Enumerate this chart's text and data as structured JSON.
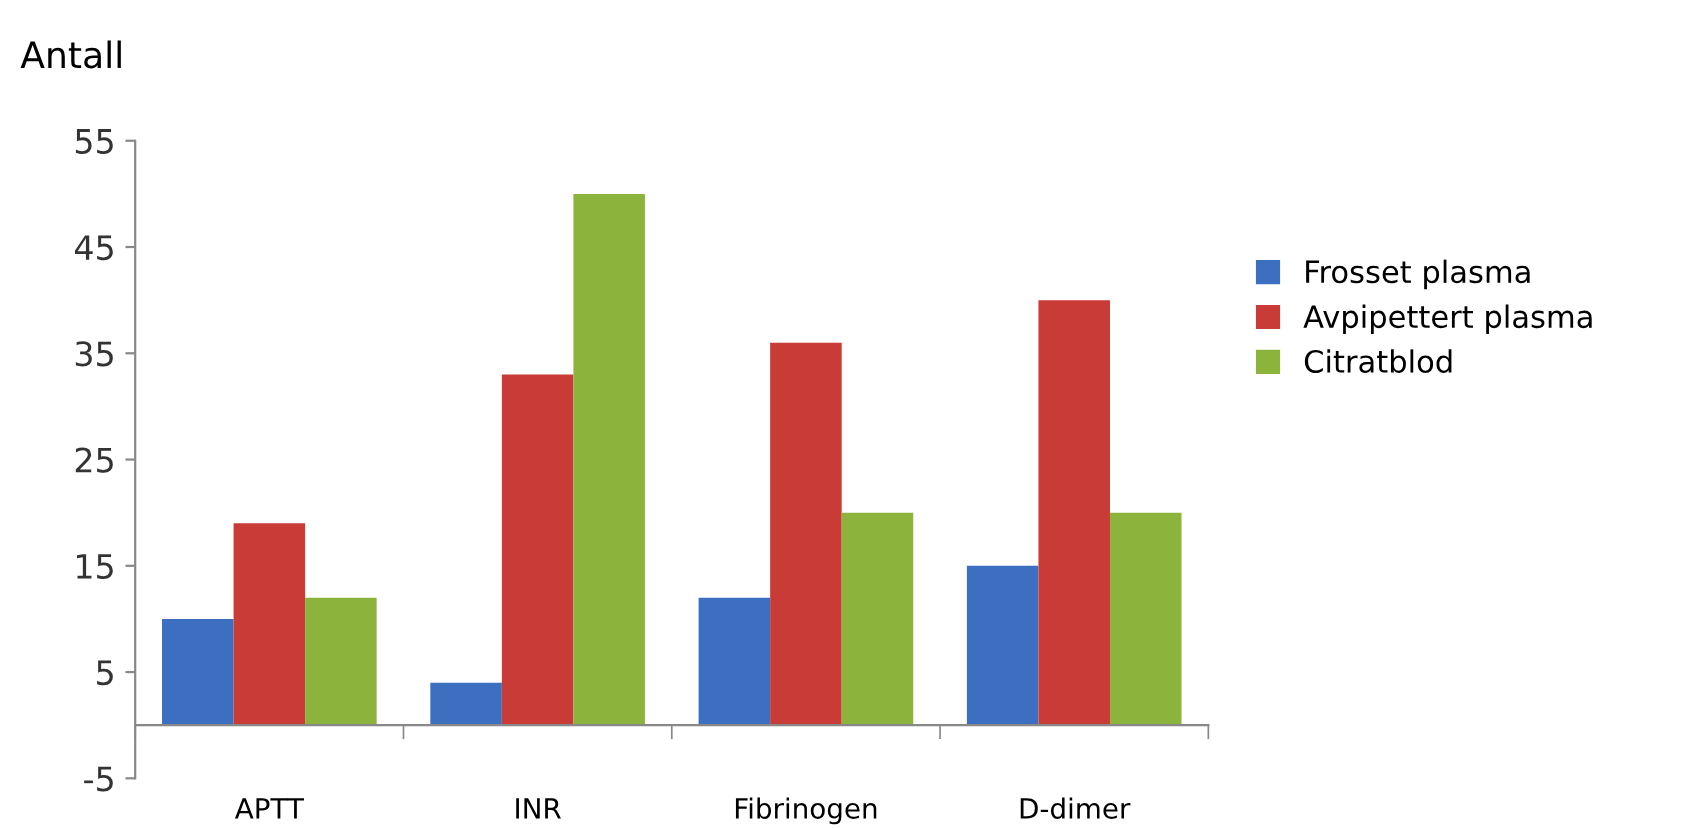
{
  "chart_data": {
    "type": "bar",
    "ylabel": "Antall",
    "categories": [
      "APTT",
      "INR",
      "Fibrinogen",
      "D-dimer"
    ],
    "series": [
      {
        "name": "Frosset plasma",
        "color": "#3c6fc0",
        "values": [
          10,
          4,
          12,
          15
        ]
      },
      {
        "name": "Avpipettert plasma",
        "color": "#c93b36",
        "values": [
          19,
          33,
          36,
          40
        ]
      },
      {
        "name": "Citratblod",
        "color": "#8cb43c",
        "values": [
          12,
          50,
          20,
          20
        ]
      }
    ],
    "ylim": [
      -5,
      55
    ],
    "yticks": [
      -5,
      5,
      15,
      25,
      35,
      45,
      55
    ],
    "grid": false,
    "legend": "right"
  }
}
